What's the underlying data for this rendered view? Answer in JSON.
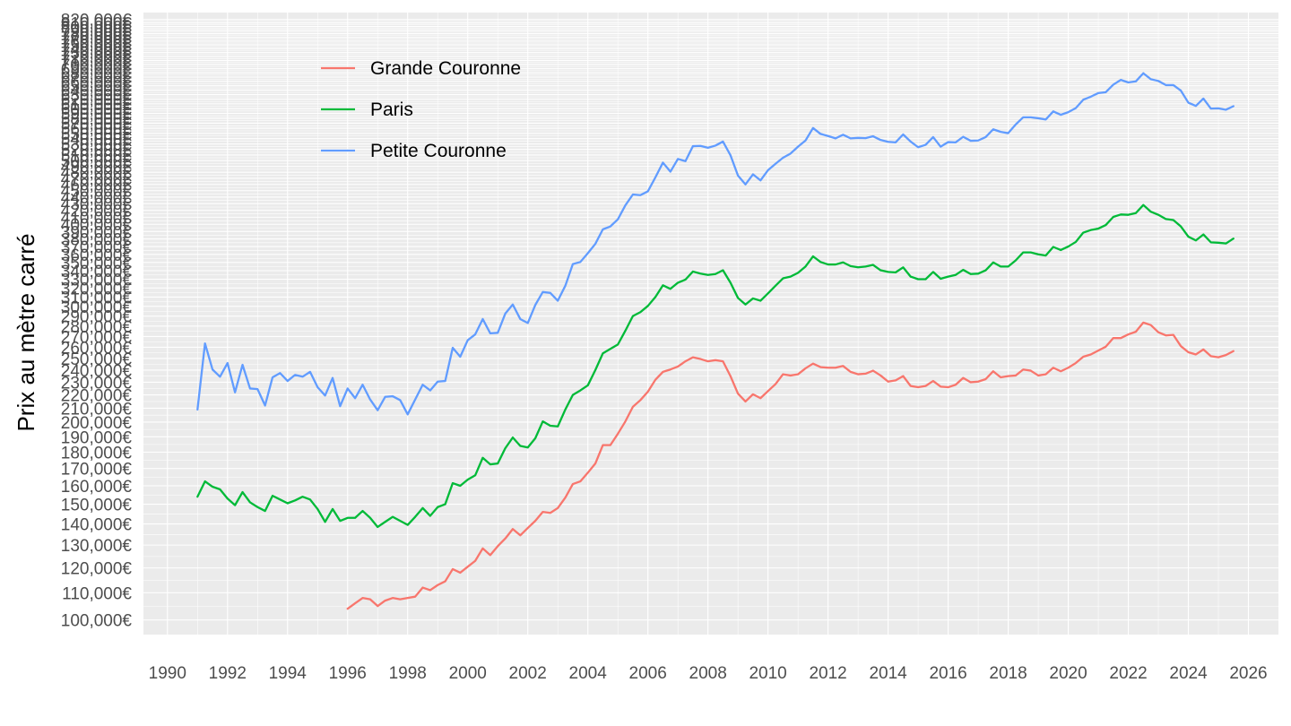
{
  "chart_data": {
    "type": "line",
    "title": "",
    "xlabel": "",
    "ylabel": "Prix au mètre carré",
    "y_scale": "log",
    "xlim": [
      1989.2,
      2027.0
    ],
    "ylim": [
      95000,
      840000
    ],
    "grid": true,
    "legend_position": "top-left",
    "x_ticks": [
      1990,
      1992,
      1994,
      1996,
      1998,
      2000,
      2002,
      2004,
      2006,
      2008,
      2010,
      2012,
      2014,
      2016,
      2018,
      2020,
      2022,
      2024,
      2026
    ],
    "x_tick_labels": [
      "1990",
      "1992",
      "1994",
      "1996",
      "1998",
      "2000",
      "2002",
      "2004",
      "2006",
      "2008",
      "2010",
      "2012",
      "2014",
      "2016",
      "2018",
      "2020",
      "2022",
      "2024",
      "2026"
    ],
    "y_ticks": [
      100000,
      110000,
      120000,
      130000,
      140000,
      150000,
      160000,
      170000,
      180000,
      190000,
      200000,
      210000,
      220000,
      230000,
      240000,
      250000,
      260000,
      270000,
      280000,
      290000,
      300000,
      310000,
      320000,
      330000,
      340000,
      350000,
      360000,
      370000,
      380000,
      390000,
      400000,
      410000,
      420000,
      430000,
      440000,
      450000,
      460000,
      470000,
      480000,
      490000,
      500000,
      510000,
      520000,
      530000,
      540000,
      550000,
      560000,
      570000,
      580000,
      590000,
      600000,
      610000,
      620000,
      630000,
      640000,
      650000,
      660000,
      670000,
      680000,
      690000,
      700000,
      710000,
      720000,
      730000,
      740000,
      750000,
      760000,
      770000,
      780000,
      790000,
      800000,
      810000,
      820000
    ],
    "y_tick_labels": [
      "100,000€",
      "110,000€",
      "120,000€",
      "130,000€",
      "140,000€",
      "150,000€",
      "160,000€",
      "170,000€",
      "180,000€",
      "190,000€",
      "200,000€",
      "210,000€",
      "220,000€",
      "230,000€",
      "240,000€",
      "250,000€",
      "260,000€",
      "270,000€",
      "280,000€",
      "290,000€",
      "300,000€",
      "310,000€",
      "320,000€",
      "330,000€",
      "340,000€",
      "350,000€",
      "360,000€",
      "370,000€",
      "380,000€",
      "390,000€",
      "400,000€",
      "410,000€",
      "420,000€",
      "430,000€",
      "440,000€",
      "450,000€",
      "460,000€",
      "470,000€",
      "480,000€",
      "490,000€",
      "500,000€",
      "510,000€",
      "520,000€",
      "530,000€",
      "540,000€",
      "550,000€",
      "560,000€",
      "570,000€",
      "580,000€",
      "590,000€",
      "600,000€",
      "610,000€",
      "620,000€",
      "630,000€",
      "640,000€",
      "650,000€",
      "660,000€",
      "670,000€",
      "680,000€",
      "690,000€",
      "700,000€",
      "710,000€",
      "720,000€",
      "730,000€",
      "740,000€",
      "750,000€",
      "760,000€",
      "770,000€",
      "780,000€",
      "790,000€",
      "800,000€",
      "810,000€",
      "820,000€"
    ],
    "series": [
      {
        "name": "Grande Couronne",
        "color": "#F8766D",
        "x": [
          1996.0,
          1996.25,
          1996.5,
          1996.75,
          1997.0,
          1997.25,
          1997.5,
          1997.75,
          1998.0,
          1998.25,
          1998.5,
          1998.75,
          1999.0,
          1999.25,
          1999.5,
          1999.75,
          2000.0,
          2000.25,
          2000.5,
          2000.75,
          2001.0,
          2001.25,
          2001.5,
          2001.75,
          2002.0,
          2002.25,
          2002.5,
          2002.75,
          2003.0,
          2003.25,
          2003.5,
          2003.75,
          2004.0,
          2004.25,
          2004.5,
          2004.75,
          2005.0,
          2005.25,
          2005.5,
          2005.75,
          2006.0,
          2006.25,
          2006.5,
          2006.75,
          2007.0,
          2007.25,
          2007.5,
          2007.75,
          2008.0,
          2008.25,
          2008.5,
          2008.75,
          2009.0,
          2009.25,
          2009.5,
          2009.75,
          2010.0,
          2010.25,
          2010.5,
          2010.75,
          2011.0,
          2011.25,
          2011.5,
          2011.75,
          2012.0,
          2012.25,
          2012.5,
          2012.75,
          2013.0,
          2013.25,
          2013.5,
          2013.75,
          2014.0,
          2014.25,
          2014.5,
          2014.75,
          2015.0,
          2015.25,
          2015.5,
          2015.75,
          2016.0,
          2016.25,
          2016.5,
          2016.75,
          2017.0,
          2017.25,
          2017.5,
          2017.75,
          2018.0,
          2018.25,
          2018.5,
          2018.75,
          2019.0,
          2019.25,
          2019.5,
          2019.75,
          2020.0,
          2020.25,
          2020.5,
          2020.75,
          2021.0,
          2021.25,
          2021.5,
          2021.75,
          2022.0,
          2022.25,
          2022.5,
          2022.75,
          2023.0,
          2023.25,
          2023.5,
          2023.75,
          2024.0,
          2024.25,
          2024.5,
          2024.75,
          2025.0,
          2025.25,
          2025.5
        ],
        "values": [
          104000,
          106000,
          108000,
          107500,
          105000,
          107000,
          108000,
          107500,
          108000,
          108500,
          112000,
          111000,
          113000,
          114500,
          119500,
          118000,
          120500,
          123000,
          128500,
          125500,
          129500,
          133000,
          137500,
          134500,
          138000,
          141500,
          146000,
          145500,
          148000,
          153500,
          161000,
          162500,
          167500,
          173000,
          184500,
          184500,
          192000,
          200500,
          211000,
          216000,
          222500,
          232000,
          238500,
          240500,
          243000,
          247500,
          251000,
          249500,
          247500,
          248500,
          247500,
          235000,
          221000,
          215000,
          220500,
          217500,
          223000,
          228500,
          236500,
          235500,
          236500,
          241500,
          245500,
          242500,
          242000,
          242000,
          243500,
          238500,
          236500,
          237000,
          239500,
          235500,
          230500,
          231500,
          235000,
          227000,
          226000,
          227000,
          231000,
          226500,
          226000,
          228000,
          233500,
          230000,
          230500,
          232500,
          239000,
          234000,
          235000,
          235500,
          240500,
          239500,
          235500,
          236500,
          242000,
          239000,
          242000,
          246000,
          251500,
          253500,
          257000,
          260500,
          268500,
          268500,
          272000,
          274500,
          283500,
          281000,
          274000,
          271000,
          271500,
          261000,
          255500,
          253500,
          258000,
          252000,
          251000,
          253000,
          256500
        ]
      },
      {
        "name": "Paris",
        "color": "#00BA38",
        "x": [
          1991.0,
          1991.25,
          1991.5,
          1991.75,
          1992.0,
          1992.25,
          1992.5,
          1992.75,
          1993.0,
          1993.25,
          1993.5,
          1993.75,
          1994.0,
          1994.25,
          1994.5,
          1994.75,
          1995.0,
          1995.25,
          1995.5,
          1995.75,
          1996.0,
          1996.25,
          1996.5,
          1996.75,
          1997.0,
          1997.25,
          1997.5,
          1997.75,
          1998.0,
          1998.25,
          1998.5,
          1998.75,
          1999.0,
          1999.25,
          1999.5,
          1999.75,
          2000.0,
          2000.25,
          2000.5,
          2000.75,
          2001.0,
          2001.25,
          2001.5,
          2001.75,
          2002.0,
          2002.25,
          2002.5,
          2002.75,
          2003.0,
          2003.25,
          2003.5,
          2003.75,
          2004.0,
          2004.25,
          2004.5,
          2004.75,
          2005.0,
          2005.25,
          2005.5,
          2005.75,
          2006.0,
          2006.25,
          2006.5,
          2006.75,
          2007.0,
          2007.25,
          2007.5,
          2007.75,
          2008.0,
          2008.25,
          2008.5,
          2008.75,
          2009.0,
          2009.25,
          2009.5,
          2009.75,
          2010.0,
          2010.25,
          2010.5,
          2010.75,
          2011.0,
          2011.25,
          2011.5,
          2011.75,
          2012.0,
          2012.25,
          2012.5,
          2012.75,
          2013.0,
          2013.25,
          2013.5,
          2013.75,
          2014.0,
          2014.25,
          2014.5,
          2014.75,
          2015.0,
          2015.25,
          2015.5,
          2015.75,
          2016.0,
          2016.25,
          2016.5,
          2016.75,
          2017.0,
          2017.25,
          2017.5,
          2017.75,
          2018.0,
          2018.25,
          2018.5,
          2018.75,
          2019.0,
          2019.25,
          2019.5,
          2019.75,
          2020.0,
          2020.25,
          2020.5,
          2020.75,
          2021.0,
          2021.25,
          2021.5,
          2021.75,
          2022.0,
          2022.25,
          2022.5,
          2022.75,
          2023.0,
          2023.25,
          2023.5,
          2023.75,
          2024.0,
          2024.25,
          2024.5,
          2024.75,
          2025.0,
          2025.25,
          2025.5
        ],
        "values": [
          154000,
          162500,
          159500,
          158000,
          153000,
          149500,
          156500,
          151000,
          148500,
          146500,
          154500,
          152500,
          150500,
          152000,
          154000,
          152500,
          147500,
          141000,
          147500,
          141500,
          143000,
          143000,
          146500,
          143000,
          138500,
          141000,
          143500,
          141500,
          139500,
          143500,
          148000,
          144000,
          148500,
          150000,
          161500,
          160000,
          163500,
          166000,
          176500,
          172500,
          173000,
          182500,
          189500,
          184000,
          183000,
          189000,
          200500,
          197500,
          197000,
          209000,
          220000,
          223500,
          227500,
          240000,
          254500,
          258500,
          262500,
          275500,
          290000,
          294000,
          300500,
          310000,
          323000,
          319000,
          326000,
          329500,
          339000,
          336500,
          335000,
          336000,
          340500,
          326000,
          309000,
          302000,
          308500,
          306000,
          314000,
          322500,
          331000,
          333000,
          337500,
          345000,
          357500,
          350500,
          347500,
          347500,
          350000,
          345500,
          344000,
          345000,
          347000,
          340500,
          338500,
          338000,
          344000,
          333000,
          330000,
          330000,
          338500,
          330500,
          333000,
          335000,
          341000,
          336000,
          336500,
          340500,
          350000,
          345000,
          345000,
          352500,
          362500,
          362500,
          360000,
          358500,
          369500,
          365500,
          370000,
          376000,
          388500,
          392000,
          394000,
          399000,
          410500,
          414000,
          413500,
          416000,
          428000,
          418000,
          413500,
          407500,
          406000,
          397000,
          383000,
          378000,
          386000,
          375500,
          375000,
          374000,
          380500
        ]
      },
      {
        "name": "Petite Couronne",
        "color": "#619CFF",
        "x": [
          1991.0,
          1991.25,
          1991.5,
          1991.75,
          1992.0,
          1992.25,
          1992.5,
          1992.75,
          1993.0,
          1993.25,
          1993.5,
          1993.75,
          1994.0,
          1994.25,
          1994.5,
          1994.75,
          1995.0,
          1995.25,
          1995.5,
          1995.75,
          1996.0,
          1996.25,
          1996.5,
          1996.75,
          1997.0,
          1997.25,
          1997.5,
          1997.75,
          1998.0,
          1998.25,
          1998.5,
          1998.75,
          1999.0,
          1999.25,
          1999.5,
          1999.75,
          2000.0,
          2000.25,
          2000.5,
          2000.75,
          2001.0,
          2001.25,
          2001.5,
          2001.75,
          2002.0,
          2002.25,
          2002.5,
          2002.75,
          2003.0,
          2003.25,
          2003.5,
          2003.75,
          2004.0,
          2004.25,
          2004.5,
          2004.75,
          2005.0,
          2005.25,
          2005.5,
          2005.75,
          2006.0,
          2006.25,
          2006.5,
          2006.75,
          2007.0,
          2007.25,
          2007.5,
          2007.75,
          2008.0,
          2008.25,
          2008.5,
          2008.75,
          2009.0,
          2009.25,
          2009.5,
          2009.75,
          2010.0,
          2010.25,
          2010.5,
          2010.75,
          2011.0,
          2011.25,
          2011.5,
          2011.75,
          2012.0,
          2012.25,
          2012.5,
          2012.75,
          2013.0,
          2013.25,
          2013.5,
          2013.75,
          2014.0,
          2014.25,
          2014.5,
          2014.75,
          2015.0,
          2015.25,
          2015.5,
          2015.75,
          2016.0,
          2016.25,
          2016.5,
          2016.75,
          2017.0,
          2017.25,
          2017.5,
          2017.75,
          2018.0,
          2018.25,
          2018.5,
          2018.75,
          2019.0,
          2019.25,
          2019.5,
          2019.75,
          2020.0,
          2020.25,
          2020.5,
          2020.75,
          2021.0,
          2021.25,
          2021.5,
          2021.75,
          2022.0,
          2022.25,
          2022.5,
          2022.75,
          2023.0,
          2023.25,
          2023.5,
          2023.75,
          2024.0,
          2024.25,
          2024.5,
          2024.75,
          2025.0,
          2025.25,
          2025.5
        ],
        "values": [
          209000,
          263500,
          240500,
          234500,
          246000,
          222000,
          244500,
          225000,
          224500,
          212000,
          234000,
          237500,
          231000,
          236000,
          234500,
          238500,
          226000,
          219500,
          233500,
          211500,
          225000,
          217500,
          228000,
          216500,
          208500,
          218500,
          219000,
          216000,
          205500,
          216500,
          228000,
          223500,
          230500,
          231000,
          259500,
          251500,
          266500,
          272000,
          287000,
          273000,
          273500,
          292500,
          302000,
          287000,
          283000,
          301500,
          315500,
          314500,
          306000,
          322500,
          348000,
          350500,
          361500,
          373500,
          393000,
          397000,
          407000,
          427500,
          444000,
          443000,
          449000,
          471500,
          496500,
          481000,
          503000,
          499000,
          526000,
          526500,
          523000,
          527000,
          534500,
          509500,
          474500,
          460000,
          476500,
          466500,
          483500,
          494500,
          505000,
          512500,
          525000,
          536500,
          560500,
          549000,
          545000,
          540500,
          547500,
          540500,
          541500,
          541000,
          544500,
          537500,
          534000,
          533000,
          548000,
          534500,
          524000,
          528500,
          543000,
          525000,
          533500,
          533000,
          543500,
          536000,
          536500,
          543000,
          558000,
          553000,
          550500,
          567500,
          582000,
          582000,
          580000,
          577500,
          594000,
          587000,
          592500,
          601000,
          619000,
          625500,
          633500,
          635500,
          652500,
          663500,
          657500,
          660000,
          679000,
          665000,
          661000,
          651500,
          651500,
          639000,
          612500,
          605500,
          621500,
          600000,
          600500,
          597500,
          605000
        ]
      }
    ]
  }
}
